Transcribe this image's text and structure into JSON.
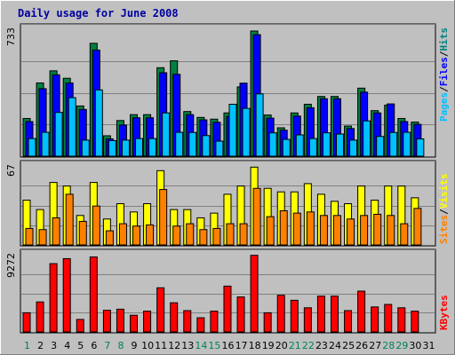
{
  "chart_data": {
    "type": "bar",
    "title": "Daily usage for June 2008",
    "categories": [
      "1",
      "2",
      "3",
      "4",
      "5",
      "6",
      "7",
      "8",
      "9",
      "10",
      "11",
      "12",
      "13",
      "14",
      "15",
      "16",
      "17",
      "18",
      "19",
      "20",
      "21",
      "22",
      "23",
      "24",
      "25",
      "26",
      "27",
      "28",
      "29",
      "30",
      "31"
    ],
    "weekend_days": [
      "1",
      "7",
      "8",
      "14",
      "15",
      "21",
      "22",
      "28",
      "29"
    ],
    "panels": [
      {
        "id": "hits",
        "ymax_label": "733",
        "ymax": 733,
        "legend": [
          {
            "label": "Pages",
            "color": "#00c0ff"
          },
          {
            "label": "/",
            "color": "#000000"
          },
          {
            "label": "Files",
            "color": "#0000ff"
          },
          {
            "label": "/",
            "color": "#000000"
          },
          {
            "label": "Hits",
            "color": "#008080"
          }
        ],
        "series": [
          {
            "name": "Hits",
            "color": "#008040",
            "values": [
              218,
              423,
              493,
              450,
              290,
              652,
              118,
              206,
              240,
              240,
              511,
              551,
              258,
              224,
              214,
              250,
              400,
              723,
              238,
              164,
              250,
              300,
              345,
              345,
              174,
              393,
              263,
              295,
              218,
              197,
              0
            ]
          },
          {
            "name": "Files",
            "color": "#0000ff",
            "values": [
              200,
              390,
              470,
              423,
              270,
              613,
              100,
              180,
              222,
              222,
              482,
              473,
              240,
              210,
              196,
              230,
              422,
              702,
              220,
              150,
              232,
              280,
              332,
              332,
              160,
              370,
              250,
              302,
              200,
              184,
              0
            ]
          },
          {
            "name": "Pages",
            "color": "#00c0ff",
            "values": [
              102,
              138,
              253,
              338,
              93,
              383,
              90,
              93,
              102,
              102,
              250,
              138,
              137,
              119,
              87,
              300,
              276,
              360,
              135,
              97,
              123,
              102,
              135,
              128,
              93,
              204,
              114,
              137,
              138,
              100,
              0
            ]
          }
        ]
      },
      {
        "id": "visits",
        "ymax_label": "67",
        "ymax": 67,
        "legend": [
          {
            "label": "Sites",
            "color": "#ff8000"
          },
          {
            "label": "/",
            "color": "#000000"
          },
          {
            "label": "Visits",
            "color": "#ffff00"
          }
        ],
        "series": [
          {
            "name": "Visits",
            "color": "#ffff00",
            "values": [
              38,
              30,
              53,
              50,
              25,
              53,
              22,
              35,
              28,
              35,
              63,
              30,
              30,
              23,
              27,
              43,
              50,
              66,
              48,
              45,
              45,
              52,
              43,
              37,
              35,
              50,
              38,
              50,
              50,
              40,
              0
            ]
          },
          {
            "name": "Sites",
            "color": "#ff8000",
            "values": [
              14,
              13,
              23,
              43,
              20,
              33,
              12,
              18,
              16,
              17,
              47,
              16,
              18,
              13,
              14,
              18,
              18,
              48,
              24,
              29,
              27,
              28,
              25,
              25,
              22,
              25,
              26,
              25,
              18,
              31,
              0
            ]
          }
        ]
      },
      {
        "id": "kbytes",
        "ymax_label": "9272",
        "ymax": 9272,
        "legend": [
          {
            "label": "KBytes",
            "color": "#ff0000"
          }
        ],
        "series": [
          {
            "name": "KBytes",
            "color": "#ff0000",
            "values": [
              2300,
              3600,
              8200,
              8800,
              1500,
              9000,
              2600,
              2730,
              2000,
              2500,
              5300,
              3500,
              2560,
              1700,
              2500,
              5500,
              4200,
              9200,
              2300,
              4400,
              3800,
              2900,
              4300,
              4300,
              2560,
              4900,
              3000,
              3300,
              2900,
              2500,
              0
            ]
          }
        ]
      }
    ]
  }
}
